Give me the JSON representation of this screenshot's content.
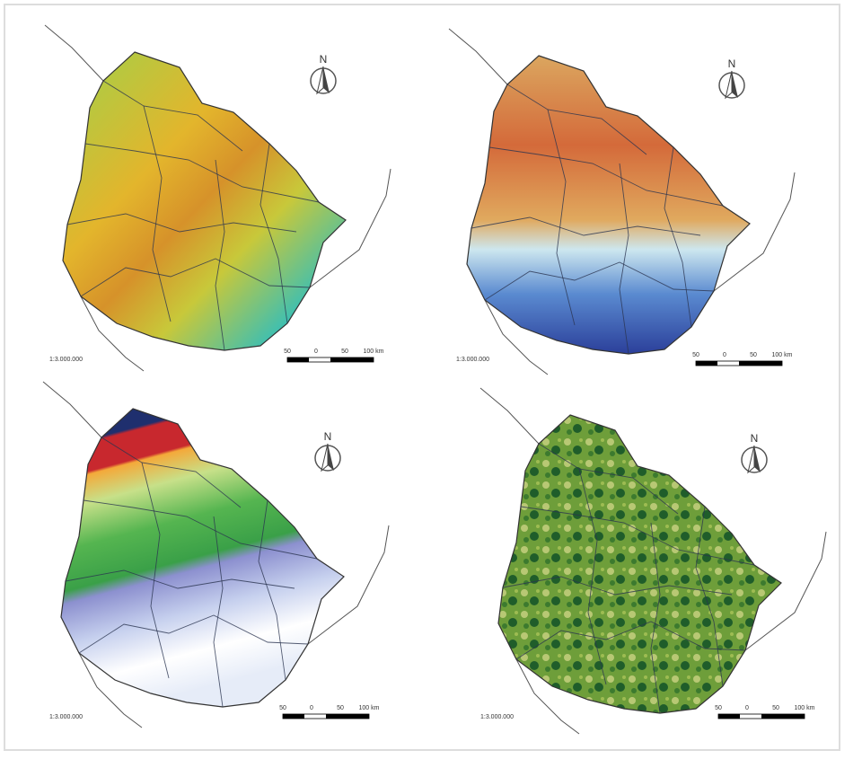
{
  "panels": [
    {
      "north": "N",
      "scale_ratio": "1:3.000.000",
      "scale_labels": [
        "50",
        "0",
        "50",
        "100 km"
      ]
    },
    {
      "north": "N",
      "scale_ratio": "1:3.000.000",
      "scale_labels": [
        "50",
        "0",
        "50",
        "100 km"
      ]
    },
    {
      "north": "N",
      "scale_ratio": "1:3.000.000",
      "scale_labels": [
        "50",
        "0",
        "50",
        "100 km"
      ]
    },
    {
      "north": "N",
      "scale_ratio": "1:3.000.000",
      "scale_labels": [
        "50",
        "0",
        "50",
        "100 km"
      ]
    }
  ]
}
